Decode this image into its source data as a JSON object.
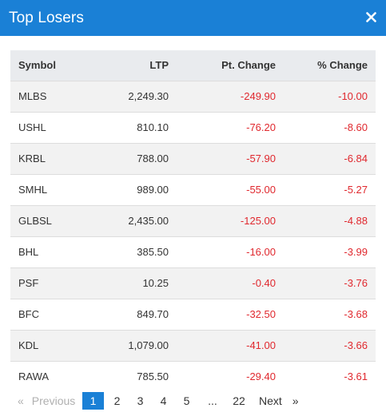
{
  "header": {
    "title": "Top Losers",
    "close_icon": "close-icon"
  },
  "table": {
    "columns": [
      "Symbol",
      "LTP",
      "Pt. Change",
      "% Change"
    ],
    "rows": [
      {
        "symbol": "MLBS",
        "ltp": "2,249.30",
        "pt_change": "-249.90",
        "pct_change": "-10.00"
      },
      {
        "symbol": "USHL",
        "ltp": "810.10",
        "pt_change": "-76.20",
        "pct_change": "-8.60"
      },
      {
        "symbol": "KRBL",
        "ltp": "788.00",
        "pt_change": "-57.90",
        "pct_change": "-6.84"
      },
      {
        "symbol": "SMHL",
        "ltp": "989.00",
        "pt_change": "-55.00",
        "pct_change": "-5.27"
      },
      {
        "symbol": "GLBSL",
        "ltp": "2,435.00",
        "pt_change": "-125.00",
        "pct_change": "-4.88"
      },
      {
        "symbol": "BHL",
        "ltp": "385.50",
        "pt_change": "-16.00",
        "pct_change": "-3.99"
      },
      {
        "symbol": "PSF",
        "ltp": "10.25",
        "pt_change": "-0.40",
        "pct_change": "-3.76"
      },
      {
        "symbol": "BFC",
        "ltp": "849.70",
        "pt_change": "-32.50",
        "pct_change": "-3.68"
      },
      {
        "symbol": "KDL",
        "ltp": "1,079.00",
        "pt_change": "-41.00",
        "pct_change": "-3.66"
      },
      {
        "symbol": "RAWA",
        "ltp": "785.50",
        "pt_change": "-29.40",
        "pct_change": "-3.61"
      }
    ]
  },
  "pagination": {
    "prev_arrow": "«",
    "prev_label": "Previous",
    "pages": [
      "1",
      "2",
      "3",
      "4",
      "5"
    ],
    "current_page": "1",
    "ellipsis": "...",
    "last_page": "22",
    "next_label": "Next",
    "next_arrow": "»"
  },
  "colors": {
    "accent": "#1a80d6",
    "negative": "#e0282e",
    "header_row_bg": "#e9ebee",
    "striped_row_bg": "#f2f2f2"
  }
}
